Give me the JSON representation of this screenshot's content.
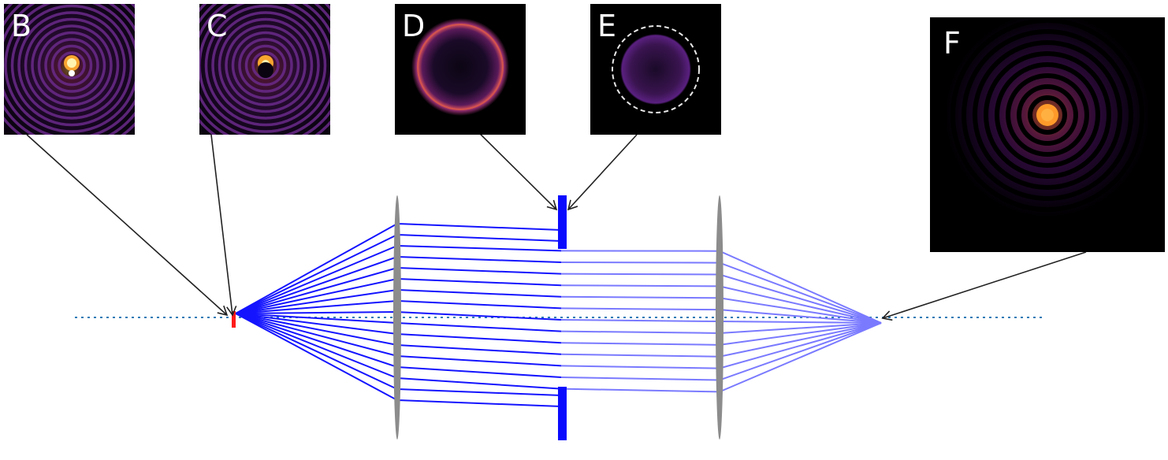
{
  "panels": [
    {
      "id": "B",
      "label": "B"
    },
    {
      "id": "C",
      "label": "C"
    },
    {
      "id": "D",
      "label": "D"
    },
    {
      "id": "E",
      "label": "E"
    },
    {
      "id": "F",
      "label": "F"
    }
  ],
  "colors": {
    "background": "#ffffff",
    "panel_background": "#000000",
    "rays": "#1414ff",
    "rays_faded": "#7a7aff",
    "stop": "#0a0aff",
    "source": "#ff1a1a",
    "lens": "#8c8c8c",
    "optical_axis": "#2a7ab5",
    "arrow": "#222222"
  },
  "icons": {
    "source": "red-point-source",
    "lens": "grey-lens-ellipse",
    "stop": "blue-aperture-stop"
  }
}
